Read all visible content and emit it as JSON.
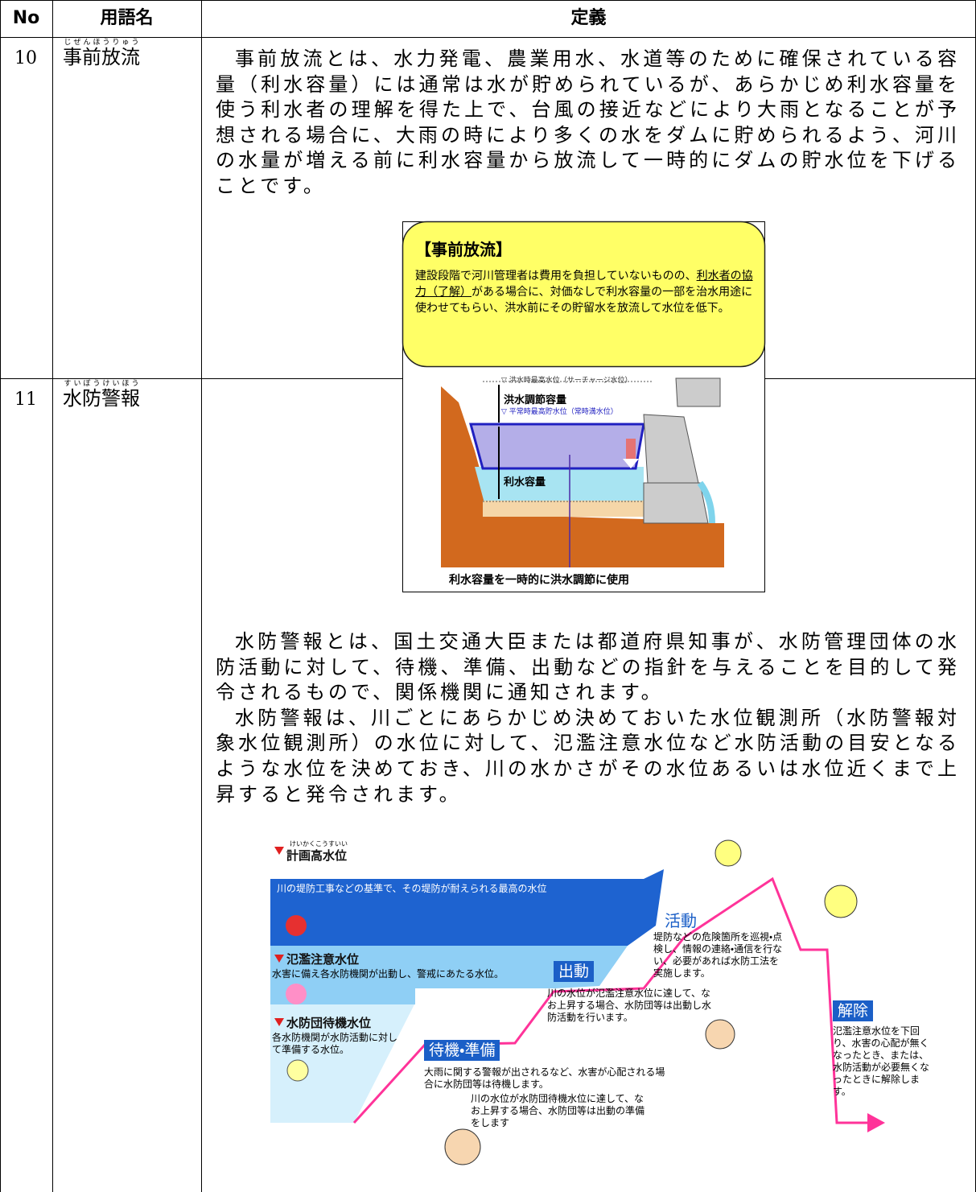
{
  "table": {
    "headers": [
      "No",
      "用語名",
      "定義"
    ],
    "rows": [
      {
        "no": "10",
        "reading": "じぜんほうりゅう",
        "term": "事前放流",
        "definition": [
          "事前放流とは、水力発電、農業用水、水道等のために確保されている容量（利水容量）には通常は水が貯められているが、あらかじめ利水容量を使う利水者の理解を得た上で、台風の接近などにより大雨となることが予想される場合に、大雨の時により多くの水をダムに貯められるよう、河川の水量が増える前に利水容量から放流して一時的にダムの貯水位を下げることです。"
        ],
        "figure": {
          "title": "【事前放流】",
          "body": [
            "建設段階で河川管理者は費用を負担していないものの、",
            "利水者の協力（了解）",
            "がある場合に、対価なしで利水容量の一部を治水用途に使わせてもらい、洪水前にその貯留水を放流して水位を低下。"
          ],
          "labels": [
            "▽ 洪水時最高水位（サーチャージ水位）",
            "洪水調節容量",
            "▽ 平常時最高貯水位（常時満水位）",
            "利水容量"
          ],
          "caption": "利水容量を一時的に洪水調節に使用"
        }
      },
      {
        "no": "11",
        "reading": "すいぼうけいほう",
        "term": "水防警報",
        "definition": [
          "水防警報とは、国土交通大臣または都道府県知事が、水防管理団体の水防活動に対して、待機、準備、出動などの指針を与えることを目的して発令されるもので、関係機関に通知されます。",
          "水防警報は、川ごとにあらかじめ決めておいた水位観測所（水防警報対象水位観測所）の水位に対して、氾濫注意水位など水防活動の目安となるような水位を決めておき、川の水かさがその水位あるいは水位近くまで上昇すると発令されます。"
        ],
        "figure": {
          "levels": [
            {
              "reading": "けいかくこうすいい",
              "name": "計画高水位",
              "description": "川の堤防工事などの基準で、その堤防が耐えられる最高の水位"
            },
            {
              "name": "氾濫注意水位",
              "description": "水害に備え各水防機関が出動し、警戒にあたる水位。"
            },
            {
              "name": "水防団待機水位",
              "description": "各水防機関が水防活動に対して準備する水位。"
            }
          ],
          "stages": [
            {
              "name": "待機・準備",
              "descriptions": [
                "大雨に関する警報が出されるなど、水害が心配される場合に水防団等は待機します。",
                "川の水位が水防団待機水位に達して、なお上昇する場合、水防団等は出動の準備をします"
              ]
            },
            {
              "name": "出動",
              "descriptions": [
                "川の水位が氾濫注意水位に達して、なお上昇する場合、水防団等は出動し水防活動を行います。"
              ]
            },
            {
              "name": "活動",
              "descriptions": [
                "堤防などの危険箇所を巡視・点検し、情報の連絡・通信を行ない、必要があれば水防工法を実施します。"
              ]
            },
            {
              "name": "解除",
              "descriptions": [
                "氾濫注意水位を下回り、水害の心配が無くなったとき、または、水防活動が必要無くなったときに解除します。"
              ]
            }
          ]
        }
      }
    ]
  }
}
